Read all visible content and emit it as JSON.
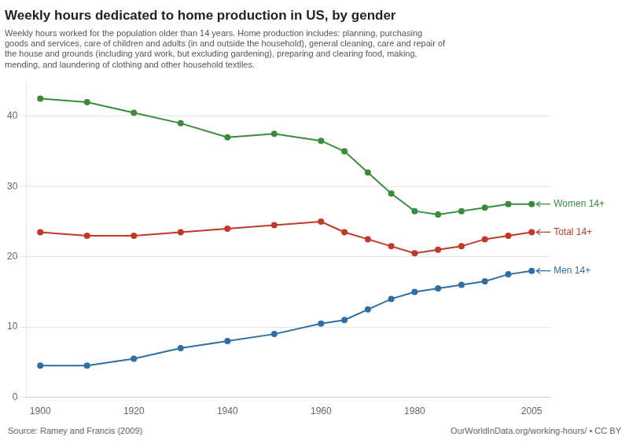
{
  "chart_data": {
    "type": "line",
    "title": "Weekly hours dedicated to home production in US, by gender",
    "subtitle": "Weekly hours worked for the population older than 14 years. Home production includes: planning, purchasing\ngoods and services, care of children and adults (in and outside the household), general cleaning, care and repair of\nthe house and grounds (including yard work, but excluding gardening), preparing and clearing food, making,\nmending, and laundering of clothing and other household textiles.",
    "source": "Source: Ramey and Francis (2009)",
    "credit": "OurWorldInData.org/working-hours/ • CC BY",
    "x": [
      1900,
      1910,
      1920,
      1930,
      1940,
      1950,
      1960,
      1965,
      1970,
      1975,
      1980,
      1985,
      1990,
      1995,
      2000,
      2005
    ],
    "series": [
      {
        "name": "Women 14+",
        "color": "#3a8c3a",
        "values": [
          42.5,
          42.0,
          40.5,
          39.0,
          37.0,
          37.5,
          36.5,
          35.0,
          32.0,
          29.0,
          26.5,
          26.0,
          26.5,
          27.0,
          27.5,
          27.5
        ]
      },
      {
        "name": "Total 14+",
        "color": "#c0392b",
        "values": [
          23.5,
          23.0,
          23.0,
          23.5,
          24.0,
          24.5,
          25.0,
          23.5,
          22.5,
          21.5,
          20.5,
          21.0,
          21.5,
          22.5,
          23.0,
          23.5
        ]
      },
      {
        "name": "Men 14+",
        "color": "#2e6ea6",
        "values": [
          4.5,
          4.5,
          5.5,
          7.0,
          8.0,
          9.0,
          10.5,
          11.0,
          12.5,
          14.0,
          15.0,
          15.5,
          16.0,
          16.5,
          17.5,
          18.0
        ]
      }
    ],
    "marker": "circle",
    "xlim": [
      1897,
      2009
    ],
    "xticks": [
      1900,
      1920,
      1940,
      1960,
      1980,
      2005
    ],
    "ylim": [
      0,
      45
    ],
    "yticks": [
      0,
      10,
      20,
      30,
      40
    ],
    "grid": "y"
  }
}
